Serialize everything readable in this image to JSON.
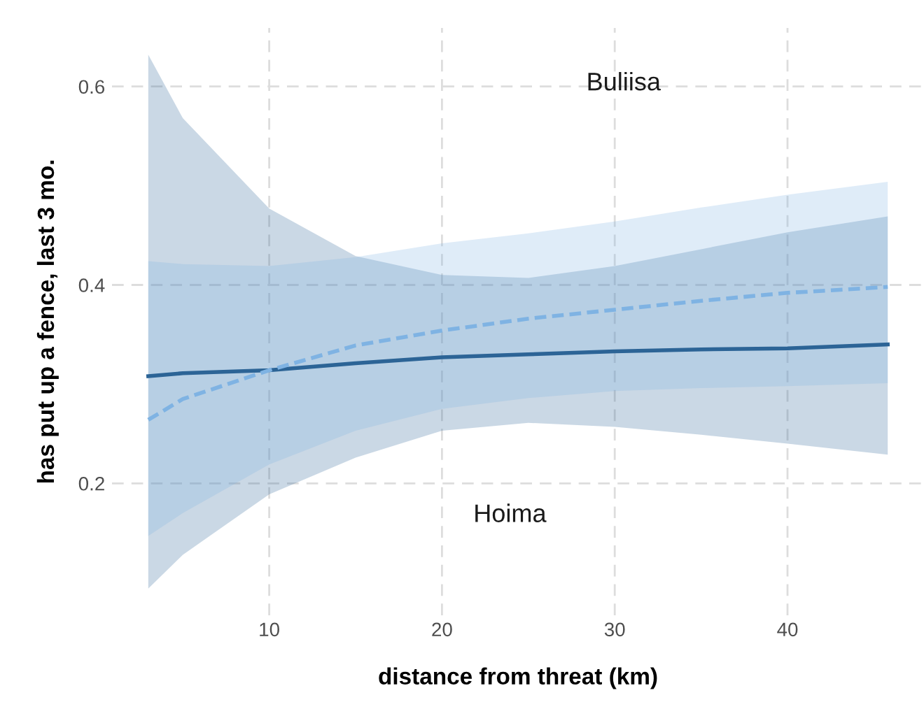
{
  "chart_data": {
    "type": "line",
    "xlabel": "distance from threat (km)",
    "ylabel": "has put up a fence, last 3 mo.",
    "x": [
      3,
      5,
      10,
      15,
      20,
      25,
      30,
      35,
      40,
      45.8
    ],
    "series": [
      {
        "color": "#2c6496",
        "line_style": "solid",
        "values": [
          0.308,
          0.311,
          0.314,
          0.321,
          0.327,
          0.33,
          0.333,
          0.335,
          0.336,
          0.34
        ],
        "lower": [
          0.094,
          0.128,
          0.189,
          0.226,
          0.253,
          0.261,
          0.257,
          0.249,
          0.24,
          0.229
        ],
        "upper": [
          0.632,
          0.568,
          0.477,
          0.429,
          0.41,
          0.407,
          0.419,
          0.436,
          0.453,
          0.469
        ]
      },
      {
        "color": "#7fb3e3",
        "line_style": "dashed",
        "values": [
          0.264,
          0.285,
          0.314,
          0.339,
          0.354,
          0.366,
          0.375,
          0.384,
          0.392,
          0.398
        ],
        "lower": [
          0.147,
          0.17,
          0.219,
          0.253,
          0.275,
          0.286,
          0.293,
          0.296,
          0.298,
          0.301
        ],
        "upper": [
          0.424,
          0.421,
          0.419,
          0.428,
          0.442,
          0.452,
          0.464,
          0.478,
          0.491,
          0.504
        ]
      }
    ],
    "annotations": [
      "Buliisa",
      "Hoima"
    ],
    "xlim": [
      0.9,
      47.9
    ],
    "ylim": [
      0.067,
      0.659
    ],
    "xticks": [
      10,
      20,
      30,
      40
    ],
    "yticks": [
      0.2,
      0.4,
      0.6
    ],
    "grid": true,
    "legend": false,
    "marker": "none"
  }
}
